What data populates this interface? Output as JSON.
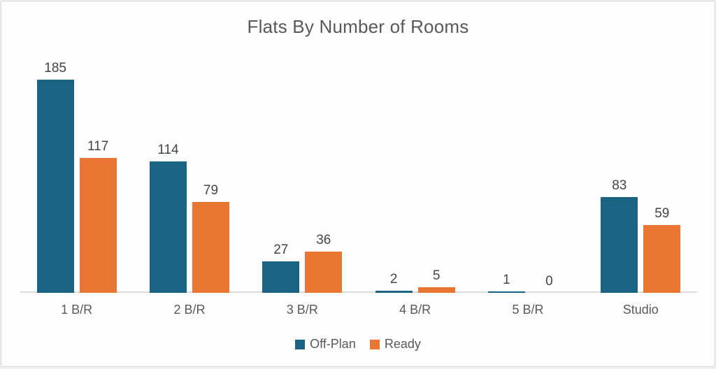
{
  "title": "Flats By Number of Rooms",
  "colors": {
    "off_plan": "#1b6385",
    "ready": "#eb7533",
    "axis_line": "#dcdcdc",
    "title_text": "#595959",
    "value_label_text": "#454545",
    "axis_label_text": "#595959",
    "card_border": "#d6d6d6",
    "card_background": "#fefefe"
  },
  "chart_data": {
    "type": "bar",
    "title": "Flats By Number of Rooms",
    "categories": [
      "1 B/R",
      "2 B/R",
      "3 B/R",
      "4 B/R",
      "5 B/R",
      "Studio"
    ],
    "series": [
      {
        "name": "Off-Plan",
        "color": "#1b6385",
        "values": [
          185,
          114,
          27,
          2,
          1,
          83
        ]
      },
      {
        "name": "Ready",
        "color": "#eb7533",
        "values": [
          117,
          79,
          36,
          5,
          0,
          59
        ]
      }
    ],
    "xlabel": "",
    "ylabel": "",
    "ylim": [
      0,
      200
    ],
    "grid": false,
    "y_axis_visible": false,
    "data_labels": true,
    "legend_position": "bottom"
  }
}
